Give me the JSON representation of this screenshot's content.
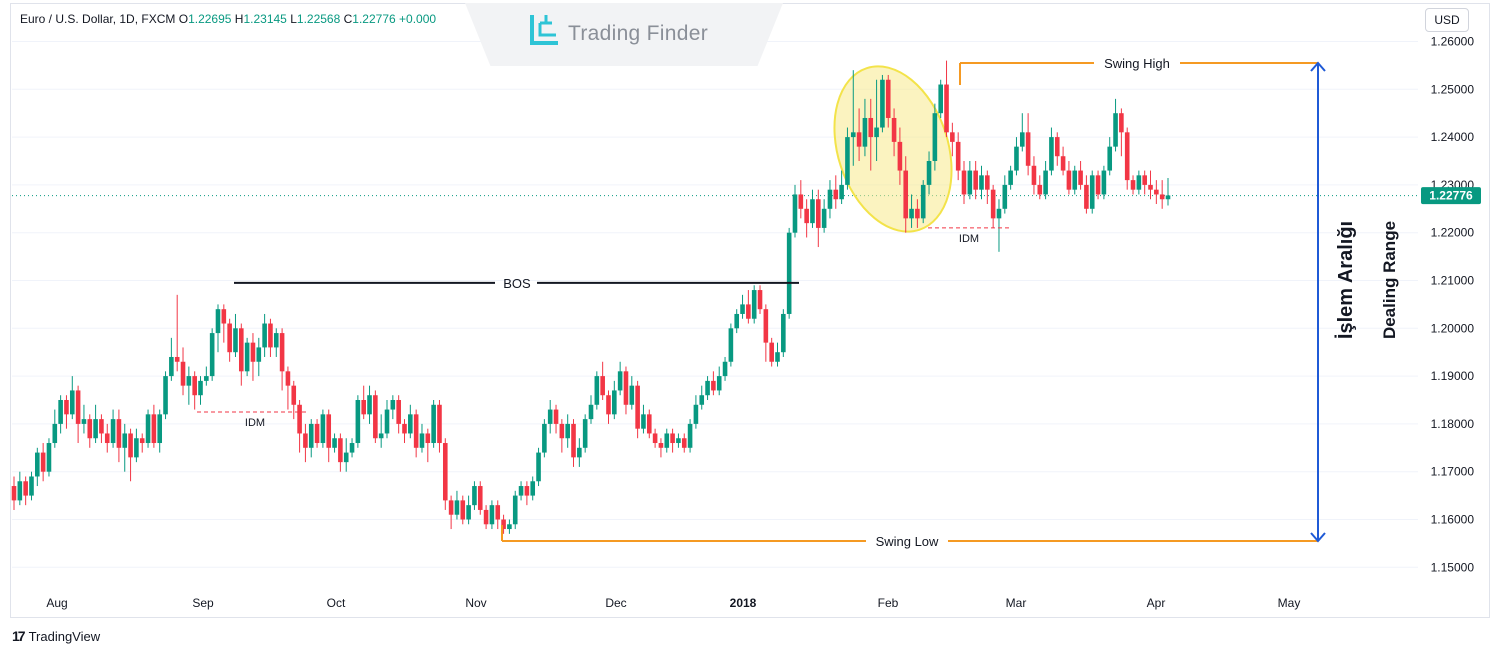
{
  "legend": {
    "symbol": "Euro / U.S. Dollar, 1D, FXCM",
    "open_label": "O",
    "open": "1.22695",
    "high_label": "H",
    "high": "1.23145",
    "low_label": "L",
    "low": "1.22568",
    "close_label": "C",
    "close": "1.22776",
    "change": "+0.000"
  },
  "currency_button": "USD",
  "watermark": "Trading Finder",
  "branding": "TradingView",
  "colors": {
    "up": "#089981",
    "down": "#f23645",
    "swing_line": "#f59a23",
    "arrow": "#1f5ad6",
    "ellipse": "#f3e34a",
    "price_tag": "#089981"
  },
  "chart_data": {
    "type": "candlestick",
    "title": "Euro / U.S. Dollar, 1D, FXCM",
    "ylim": [
      1.145,
      1.262
    ],
    "y_ticks": [
      "1.26000",
      "1.25000",
      "1.24000",
      "1.23000",
      "1.22000",
      "1.21000",
      "1.20000",
      "1.19000",
      "1.18000",
      "1.17000",
      "1.16000",
      "1.15000"
    ],
    "x_ticks": [
      "Aug",
      "Sep",
      "Oct",
      "Nov",
      "Dec",
      "2018",
      "Feb",
      "Mar",
      "Apr",
      "May"
    ],
    "last_price": "1.22776",
    "candles": [
      [
        1.167,
        1.164,
        1.169,
        1.162
      ],
      [
        1.164,
        1.168,
        1.17,
        1.163
      ],
      [
        1.168,
        1.165,
        1.169,
        1.163
      ],
      [
        1.165,
        1.169,
        1.17,
        1.164
      ],
      [
        1.169,
        1.174,
        1.175,
        1.167
      ],
      [
        1.174,
        1.17,
        1.176,
        1.168
      ],
      [
        1.17,
        1.176,
        1.177,
        1.169
      ],
      [
        1.176,
        1.18,
        1.183,
        1.175
      ],
      [
        1.18,
        1.185,
        1.186,
        1.178
      ],
      [
        1.185,
        1.182,
        1.186,
        1.179
      ],
      [
        1.182,
        1.187,
        1.19,
        1.181
      ],
      [
        1.187,
        1.18,
        1.188,
        1.176
      ],
      [
        1.18,
        1.181,
        1.184,
        1.178
      ],
      [
        1.181,
        1.177,
        1.182,
        1.175
      ],
      [
        1.177,
        1.181,
        1.184,
        1.176
      ],
      [
        1.181,
        1.178,
        1.182,
        1.176
      ],
      [
        1.178,
        1.176,
        1.18,
        1.174
      ],
      [
        1.176,
        1.181,
        1.183,
        1.175
      ],
      [
        1.181,
        1.175,
        1.183,
        1.172
      ],
      [
        1.175,
        1.178,
        1.18,
        1.17
      ],
      [
        1.178,
        1.173,
        1.179,
        1.168
      ],
      [
        1.173,
        1.177,
        1.179,
        1.172
      ],
      [
        1.177,
        1.176,
        1.178,
        1.174
      ],
      [
        1.176,
        1.182,
        1.183,
        1.175
      ],
      [
        1.182,
        1.176,
        1.184,
        1.175
      ],
      [
        1.176,
        1.182,
        1.183,
        1.174
      ],
      [
        1.182,
        1.19,
        1.191,
        1.181
      ],
      [
        1.19,
        1.194,
        1.198,
        1.189
      ],
      [
        1.194,
        1.193,
        1.207,
        1.191
      ],
      [
        1.193,
        1.188,
        1.196,
        1.186
      ],
      [
        1.188,
        1.19,
        1.192,
        1.184
      ],
      [
        1.19,
        1.186,
        1.191,
        1.183
      ],
      [
        1.186,
        1.189,
        1.19,
        1.184
      ],
      [
        1.189,
        1.19,
        1.192,
        1.188
      ],
      [
        1.19,
        1.199,
        1.2,
        1.189
      ],
      [
        1.199,
        1.204,
        1.205,
        1.195
      ],
      [
        1.204,
        1.201,
        1.205,
        1.197
      ],
      [
        1.201,
        1.195,
        1.202,
        1.193
      ],
      [
        1.195,
        1.2,
        1.203,
        1.194
      ],
      [
        1.2,
        1.191,
        1.201,
        1.188
      ],
      [
        1.191,
        1.197,
        1.198,
        1.19
      ],
      [
        1.197,
        1.193,
        1.199,
        1.189
      ],
      [
        1.193,
        1.196,
        1.198,
        1.19
      ],
      [
        1.196,
        1.201,
        1.203,
        1.194
      ],
      [
        1.201,
        1.196,
        1.202,
        1.194
      ],
      [
        1.196,
        1.199,
        1.2,
        1.194
      ],
      [
        1.199,
        1.191,
        1.2,
        1.187
      ],
      [
        1.191,
        1.188,
        1.192,
        1.183
      ],
      [
        1.188,
        1.184,
        1.189,
        1.181
      ],
      [
        1.184,
        1.178,
        1.185,
        1.174
      ],
      [
        1.178,
        1.175,
        1.18,
        1.172
      ],
      [
        1.175,
        1.18,
        1.181,
        1.173
      ],
      [
        1.18,
        1.176,
        1.181,
        1.175
      ],
      [
        1.176,
        1.182,
        1.183,
        1.175
      ],
      [
        1.182,
        1.175,
        1.183,
        1.172
      ],
      [
        1.175,
        1.177,
        1.178,
        1.174
      ],
      [
        1.177,
        1.172,
        1.178,
        1.17
      ],
      [
        1.172,
        1.174,
        1.177,
        1.17
      ],
      [
        1.174,
        1.176,
        1.177,
        1.173
      ],
      [
        1.176,
        1.185,
        1.186,
        1.175
      ],
      [
        1.185,
        1.182,
        1.188,
        1.181
      ],
      [
        1.182,
        1.186,
        1.188,
        1.18
      ],
      [
        1.186,
        1.177,
        1.187,
        1.176
      ],
      [
        1.177,
        1.178,
        1.182,
        1.175
      ],
      [
        1.178,
        1.183,
        1.185,
        1.177
      ],
      [
        1.183,
        1.185,
        1.186,
        1.181
      ],
      [
        1.185,
        1.18,
        1.186,
        1.178
      ],
      [
        1.18,
        1.178,
        1.181,
        1.176
      ],
      [
        1.178,
        1.182,
        1.184,
        1.177
      ],
      [
        1.182,
        1.175,
        1.183,
        1.173
      ],
      [
        1.175,
        1.178,
        1.18,
        1.174
      ],
      [
        1.178,
        1.176,
        1.179,
        1.172
      ],
      [
        1.176,
        1.184,
        1.185,
        1.175
      ],
      [
        1.184,
        1.176,
        1.185,
        1.174
      ],
      [
        1.176,
        1.164,
        1.177,
        1.162
      ],
      [
        1.164,
        1.161,
        1.165,
        1.158
      ],
      [
        1.161,
        1.164,
        1.166,
        1.16
      ],
      [
        1.164,
        1.16,
        1.165,
        1.159
      ],
      [
        1.16,
        1.163,
        1.165,
        1.159
      ],
      [
        1.163,
        1.167,
        1.168,
        1.162
      ],
      [
        1.167,
        1.162,
        1.168,
        1.161
      ],
      [
        1.162,
        1.159,
        1.163,
        1.158
      ],
      [
        1.159,
        1.163,
        1.164,
        1.158
      ],
      [
        1.163,
        1.16,
        1.164,
        1.158
      ],
      [
        1.16,
        1.158,
        1.161,
        1.157
      ],
      [
        1.158,
        1.159,
        1.16,
        1.157
      ],
      [
        1.159,
        1.165,
        1.166,
        1.158
      ],
      [
        1.165,
        1.167,
        1.168,
        1.164
      ],
      [
        1.167,
        1.165,
        1.168,
        1.163
      ],
      [
        1.165,
        1.168,
        1.169,
        1.164
      ],
      [
        1.168,
        1.174,
        1.175,
        1.167
      ],
      [
        1.174,
        1.18,
        1.181,
        1.173
      ],
      [
        1.18,
        1.183,
        1.185,
        1.178
      ],
      [
        1.183,
        1.18,
        1.184,
        1.178
      ],
      [
        1.18,
        1.177,
        1.181,
        1.174
      ],
      [
        1.177,
        1.18,
        1.182,
        1.175
      ],
      [
        1.18,
        1.173,
        1.181,
        1.171
      ],
      [
        1.173,
        1.175,
        1.177,
        1.171
      ],
      [
        1.175,
        1.181,
        1.182,
        1.174
      ],
      [
        1.181,
        1.184,
        1.186,
        1.18
      ],
      [
        1.184,
        1.19,
        1.191,
        1.183
      ],
      [
        1.19,
        1.186,
        1.193,
        1.185
      ],
      [
        1.186,
        1.182,
        1.187,
        1.18
      ],
      [
        1.182,
        1.187,
        1.189,
        1.181
      ],
      [
        1.187,
        1.191,
        1.193,
        1.186
      ],
      [
        1.191,
        1.184,
        1.192,
        1.182
      ],
      [
        1.184,
        1.188,
        1.19,
        1.183
      ],
      [
        1.188,
        1.179,
        1.189,
        1.177
      ],
      [
        1.179,
        1.182,
        1.184,
        1.178
      ],
      [
        1.182,
        1.178,
        1.183,
        1.177
      ],
      [
        1.178,
        1.176,
        1.179,
        1.175
      ],
      [
        1.176,
        1.175,
        1.177,
        1.173
      ],
      [
        1.175,
        1.178,
        1.179,
        1.174
      ],
      [
        1.178,
        1.176,
        1.179,
        1.174
      ],
      [
        1.176,
        1.177,
        1.178,
        1.175
      ],
      [
        1.177,
        1.175,
        1.178,
        1.174
      ],
      [
        1.175,
        1.18,
        1.181,
        1.174
      ],
      [
        1.18,
        1.184,
        1.186,
        1.179
      ],
      [
        1.184,
        1.186,
        1.188,
        1.183
      ],
      [
        1.186,
        1.189,
        1.19,
        1.185
      ],
      [
        1.189,
        1.187,
        1.191,
        1.186
      ],
      [
        1.187,
        1.19,
        1.192,
        1.186
      ],
      [
        1.19,
        1.193,
        1.194,
        1.189
      ],
      [
        1.193,
        1.2,
        1.201,
        1.192
      ],
      [
        1.2,
        1.203,
        1.204,
        1.199
      ],
      [
        1.203,
        1.205,
        1.207,
        1.202
      ],
      [
        1.205,
        1.202,
        1.208,
        1.201
      ],
      [
        1.202,
        1.208,
        1.209,
        1.201
      ],
      [
        1.208,
        1.204,
        1.209,
        1.203
      ],
      [
        1.204,
        1.197,
        1.205,
        1.193
      ],
      [
        1.197,
        1.193,
        1.198,
        1.192
      ],
      [
        1.193,
        1.195,
        1.197,
        1.192
      ],
      [
        1.195,
        1.203,
        1.204,
        1.194
      ],
      [
        1.203,
        1.22,
        1.221,
        1.202
      ],
      [
        1.22,
        1.228,
        1.23,
        1.219
      ],
      [
        1.228,
        1.225,
        1.231,
        1.223
      ],
      [
        1.225,
        1.222,
        1.227,
        1.219
      ],
      [
        1.222,
        1.227,
        1.229,
        1.221
      ],
      [
        1.227,
        1.221,
        1.229,
        1.217
      ],
      [
        1.221,
        1.225,
        1.227,
        1.22
      ],
      [
        1.225,
        1.229,
        1.231,
        1.223
      ],
      [
        1.229,
        1.227,
        1.232,
        1.225
      ],
      [
        1.227,
        1.23,
        1.233,
        1.226
      ],
      [
        1.23,
        1.24,
        1.242,
        1.229
      ],
      [
        1.24,
        1.241,
        1.254,
        1.234
      ],
      [
        1.241,
        1.238,
        1.246,
        1.235
      ],
      [
        1.238,
        1.244,
        1.248,
        1.236
      ],
      [
        1.244,
        1.24,
        1.248,
        1.233
      ],
      [
        1.24,
        1.242,
        1.252,
        1.235
      ],
      [
        1.242,
        1.252,
        1.253,
        1.241
      ],
      [
        1.252,
        1.244,
        1.253,
        1.242
      ],
      [
        1.244,
        1.239,
        1.246,
        1.236
      ],
      [
        1.239,
        1.233,
        1.242,
        1.23
      ],
      [
        1.233,
        1.223,
        1.236,
        1.22
      ],
      [
        1.223,
        1.225,
        1.228,
        1.221
      ],
      [
        1.225,
        1.223,
        1.227,
        1.221
      ],
      [
        1.223,
        1.23,
        1.231,
        1.222
      ],
      [
        1.23,
        1.235,
        1.237,
        1.228
      ],
      [
        1.235,
        1.245,
        1.247,
        1.233
      ],
      [
        1.245,
        1.251,
        1.252,
        1.244
      ],
      [
        1.251,
        1.241,
        1.256,
        1.24
      ],
      [
        1.241,
        1.239,
        1.243,
        1.236
      ],
      [
        1.239,
        1.233,
        1.241,
        1.231
      ],
      [
        1.233,
        1.228,
        1.235,
        1.226
      ],
      [
        1.228,
        1.233,
        1.235,
        1.227
      ],
      [
        1.233,
        1.229,
        1.235,
        1.227
      ],
      [
        1.229,
        1.232,
        1.234,
        1.227
      ],
      [
        1.232,
        1.229,
        1.233,
        1.226
      ],
      [
        1.229,
        1.223,
        1.23,
        1.221
      ],
      [
        1.223,
        1.225,
        1.227,
        1.216
      ],
      [
        1.225,
        1.23,
        1.232,
        1.224
      ],
      [
        1.23,
        1.233,
        1.234,
        1.229
      ],
      [
        1.233,
        1.238,
        1.24,
        1.232
      ],
      [
        1.238,
        1.241,
        1.245,
        1.237
      ],
      [
        1.241,
        1.234,
        1.245,
        1.232
      ],
      [
        1.234,
        1.23,
        1.236,
        1.228
      ],
      [
        1.23,
        1.228,
        1.232,
        1.227
      ],
      [
        1.228,
        1.233,
        1.235,
        1.227
      ],
      [
        1.233,
        1.24,
        1.242,
        1.232
      ],
      [
        1.24,
        1.236,
        1.241,
        1.234
      ],
      [
        1.236,
        1.233,
        1.238,
        1.232
      ],
      [
        1.233,
        1.229,
        1.235,
        1.228
      ],
      [
        1.229,
        1.233,
        1.234,
        1.228
      ],
      [
        1.233,
        1.23,
        1.235,
        1.229
      ],
      [
        1.23,
        1.225,
        1.232,
        1.224
      ],
      [
        1.225,
        1.232,
        1.233,
        1.224
      ],
      [
        1.232,
        1.228,
        1.233,
        1.227
      ],
      [
        1.228,
        1.233,
        1.234,
        1.227
      ],
      [
        1.233,
        1.238,
        1.24,
        1.232
      ],
      [
        1.238,
        1.245,
        1.248,
        1.237
      ],
      [
        1.245,
        1.241,
        1.246,
        1.236
      ],
      [
        1.241,
        1.231,
        1.242,
        1.229
      ],
      [
        1.231,
        1.229,
        1.232,
        1.228
      ],
      [
        1.229,
        1.232,
        1.233,
        1.228
      ],
      [
        1.232,
        1.23,
        1.233,
        1.228
      ],
      [
        1.23,
        1.229,
        1.233,
        1.227
      ],
      [
        1.229,
        1.228,
        1.231,
        1.226
      ],
      [
        1.228,
        1.227,
        1.231,
        1.225
      ],
      [
        1.227,
        1.2278,
        1.23145,
        1.22568
      ]
    ],
    "annotations": {
      "bos": "BOS",
      "idm_1": "IDM",
      "idm_2": "IDM",
      "idm_3": "IDM",
      "swing_high": "Swing High",
      "swing_low": "Swing Low",
      "range_label_1": "İşlem Aralığı",
      "range_label_2": "Dealing Range",
      "bos_level": 1.2095,
      "swing_high_level": 1.2555,
      "swing_low_level": 1.1555,
      "idm_1_level": 1.1825,
      "idm_2_level": 1.221,
      "idm_3_level": 1.221
    }
  }
}
